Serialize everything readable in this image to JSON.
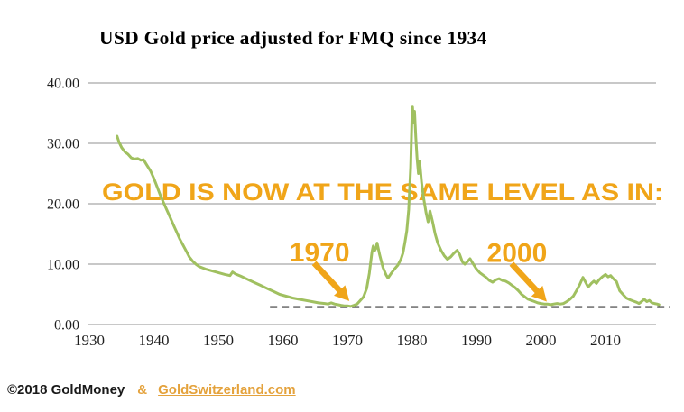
{
  "title": "USD Gold price adjusted for FMQ since 1934",
  "annotation": {
    "headline": "GOLD IS NOW AT THE SAME LEVEL AS IN:",
    "markers": [
      {
        "label": "1970",
        "target_year": 1970.3,
        "target_value": 3.9
      },
      {
        "label": "2000",
        "target_year": 2000.9,
        "target_value": 3.8
      }
    ]
  },
  "footer": {
    "copyright": "©2018 GoldMoney",
    "separator": "&",
    "link": "GoldSwitzerland.com"
  },
  "colors": {
    "line_green": "#A0C060",
    "accent_gold": "#F0A519",
    "footer_gold": "#E4A23C",
    "gridline_gray": "#A6A6A6",
    "dashed_line": "#3B3B3B",
    "text_black": "#1A1A1A"
  },
  "chart_data": {
    "type": "line",
    "title": "USD Gold price adjusted for FMQ since 1934",
    "grid": true,
    "legend": false,
    "x_axis": {
      "tick_years": [
        1930,
        1940,
        1950,
        1960,
        1970,
        1980,
        1990,
        2000,
        2010
      ],
      "tick_labels": [
        "1930",
        "1940",
        "1950",
        "1960",
        "1970",
        "1980",
        "1990",
        "2000",
        "2010"
      ],
      "range": [
        1930,
        2017.8
      ]
    },
    "y_axis": {
      "tick_values": [
        40,
        30,
        20,
        10,
        0
      ],
      "tick_labels": [
        "40.00",
        "30.00",
        "20.00",
        "10.00",
        "0.00"
      ],
      "range": [
        0,
        40
      ]
    },
    "reference_line": {
      "value": 2.9,
      "style": "dashed",
      "start_year": 1958,
      "end_year": 2020
    },
    "series": [
      {
        "name": "USD Gold price adjusted for FMQ",
        "points": [
          [
            1934.3,
            31.2
          ],
          [
            1934.6,
            30.2
          ],
          [
            1935,
            29.3
          ],
          [
            1935.5,
            28.6
          ],
          [
            1936,
            28.2
          ],
          [
            1936.5,
            27.6
          ],
          [
            1937,
            27.4
          ],
          [
            1937.5,
            27.5
          ],
          [
            1938,
            27.2
          ],
          [
            1938.4,
            27.3
          ],
          [
            1938.8,
            26.6
          ],
          [
            1939.5,
            25.4
          ],
          [
            1940,
            24.2
          ],
          [
            1940.5,
            22.8
          ],
          [
            1941,
            21.4
          ],
          [
            1941.5,
            20.2
          ],
          [
            1942,
            19.0
          ],
          [
            1942.5,
            17.8
          ],
          [
            1943,
            16.6
          ],
          [
            1943.5,
            15.4
          ],
          [
            1944,
            14.2
          ],
          [
            1944.5,
            13.2
          ],
          [
            1945,
            12.2
          ],
          [
            1945.5,
            11.2
          ],
          [
            1946,
            10.5
          ],
          [
            1946.5,
            10.0
          ],
          [
            1947,
            9.6
          ],
          [
            1948,
            9.2
          ],
          [
            1949,
            8.9
          ],
          [
            1950,
            8.6
          ],
          [
            1951,
            8.3
          ],
          [
            1951.8,
            8.1
          ],
          [
            1952.2,
            8.7
          ],
          [
            1952.6,
            8.4
          ],
          [
            1953.5,
            8.0
          ],
          [
            1954.5,
            7.5
          ],
          [
            1955.5,
            7.0
          ],
          [
            1956.5,
            6.5
          ],
          [
            1957.5,
            6.0
          ],
          [
            1958.5,
            5.5
          ],
          [
            1959.5,
            5.0
          ],
          [
            1960.5,
            4.7
          ],
          [
            1961.5,
            4.4
          ],
          [
            1962.5,
            4.2
          ],
          [
            1963.5,
            4.0
          ],
          [
            1964.5,
            3.8
          ],
          [
            1965.5,
            3.6
          ],
          [
            1966.5,
            3.5
          ],
          [
            1967,
            3.4
          ],
          [
            1967.5,
            3.6
          ],
          [
            1968,
            3.4
          ],
          [
            1968.5,
            3.3
          ],
          [
            1969,
            3.2
          ],
          [
            1969.5,
            3.1
          ],
          [
            1970,
            3.1
          ],
          [
            1970.5,
            3.0
          ],
          [
            1971,
            3.2
          ],
          [
            1971.5,
            3.4
          ],
          [
            1972,
            4.0
          ],
          [
            1972.5,
            4.6
          ],
          [
            1973,
            6.0
          ],
          [
            1973.4,
            8.5
          ],
          [
            1973.8,
            12.0
          ],
          [
            1974.0,
            13.0
          ],
          [
            1974.2,
            12.2
          ],
          [
            1974.4,
            12.6
          ],
          [
            1974.6,
            13.5
          ],
          [
            1975,
            11.5
          ],
          [
            1975.5,
            9.5
          ],
          [
            1976,
            8.2
          ],
          [
            1976.3,
            7.7
          ],
          [
            1976.8,
            8.5
          ],
          [
            1977.3,
            9.2
          ],
          [
            1977.8,
            9.8
          ],
          [
            1978.3,
            10.8
          ],
          [
            1978.6,
            11.8
          ],
          [
            1978.9,
            13.5
          ],
          [
            1979.2,
            15.5
          ],
          [
            1979.5,
            19.0
          ],
          [
            1979.8,
            26.0
          ],
          [
            1980.0,
            34.0
          ],
          [
            1980.1,
            36.0
          ],
          [
            1980.25,
            33.5
          ],
          [
            1980.4,
            35.3
          ],
          [
            1980.6,
            31.0
          ],
          [
            1980.8,
            27.5
          ],
          [
            1981.0,
            25.0
          ],
          [
            1981.2,
            27.0
          ],
          [
            1981.5,
            23.5
          ],
          [
            1981.8,
            21.0
          ],
          [
            1982.2,
            18.5
          ],
          [
            1982.5,
            17.0
          ],
          [
            1982.8,
            18.8
          ],
          [
            1983.2,
            17.0
          ],
          [
            1983.6,
            15.0
          ],
          [
            1984,
            13.5
          ],
          [
            1984.5,
            12.3
          ],
          [
            1985,
            11.4
          ],
          [
            1985.5,
            10.8
          ],
          [
            1986,
            11.2
          ],
          [
            1986.5,
            11.8
          ],
          [
            1987,
            12.3
          ],
          [
            1987.4,
            11.6
          ],
          [
            1987.8,
            10.4
          ],
          [
            1988.2,
            10.0
          ],
          [
            1988.6,
            10.4
          ],
          [
            1989,
            10.9
          ],
          [
            1989.4,
            10.2
          ],
          [
            1990,
            9.2
          ],
          [
            1990.5,
            8.6
          ],
          [
            1991,
            8.2
          ],
          [
            1991.5,
            7.8
          ],
          [
            1992,
            7.3
          ],
          [
            1992.5,
            7.0
          ],
          [
            1993,
            7.4
          ],
          [
            1993.5,
            7.6
          ],
          [
            1994,
            7.3
          ],
          [
            1994.5,
            7.2
          ],
          [
            1995,
            6.9
          ],
          [
            1995.5,
            6.5
          ],
          [
            1996,
            6.1
          ],
          [
            1996.5,
            5.6
          ],
          [
            1997,
            5.0
          ],
          [
            1997.5,
            4.6
          ],
          [
            1998,
            4.2
          ],
          [
            1998.5,
            4.0
          ],
          [
            1999,
            3.8
          ],
          [
            1999.5,
            3.6
          ],
          [
            2000,
            3.5
          ],
          [
            2000.5,
            3.4
          ],
          [
            2001,
            3.4
          ],
          [
            2001.5,
            3.3
          ],
          [
            2002,
            3.4
          ],
          [
            2002.5,
            3.5
          ],
          [
            2003,
            3.4
          ],
          [
            2003.5,
            3.5
          ],
          [
            2004,
            3.8
          ],
          [
            2004.5,
            4.2
          ],
          [
            2005,
            4.7
          ],
          [
            2005.5,
            5.6
          ],
          [
            2006,
            6.6
          ],
          [
            2006.5,
            7.8
          ],
          [
            2007,
            6.8
          ],
          [
            2007.3,
            6.2
          ],
          [
            2007.8,
            6.8
          ],
          [
            2008.2,
            7.2
          ],
          [
            2008.6,
            6.8
          ],
          [
            2009,
            7.4
          ],
          [
            2009.5,
            7.9
          ],
          [
            2010,
            8.3
          ],
          [
            2010.4,
            7.9
          ],
          [
            2010.8,
            8.1
          ],
          [
            2011.3,
            7.5
          ],
          [
            2011.7,
            7.1
          ],
          [
            2012.2,
            5.6
          ],
          [
            2012.7,
            5.0
          ],
          [
            2013.2,
            4.4
          ],
          [
            2013.8,
            4.1
          ],
          [
            2014.3,
            3.9
          ],
          [
            2014.8,
            3.7
          ],
          [
            2015.2,
            3.5
          ],
          [
            2015.6,
            3.8
          ],
          [
            2016.0,
            4.2
          ],
          [
            2016.4,
            3.8
          ],
          [
            2016.8,
            4.0
          ],
          [
            2017.2,
            3.6
          ],
          [
            2017.6,
            3.5
          ],
          [
            2018.0,
            3.4
          ],
          [
            2018.3,
            3.3
          ]
        ]
      }
    ]
  }
}
